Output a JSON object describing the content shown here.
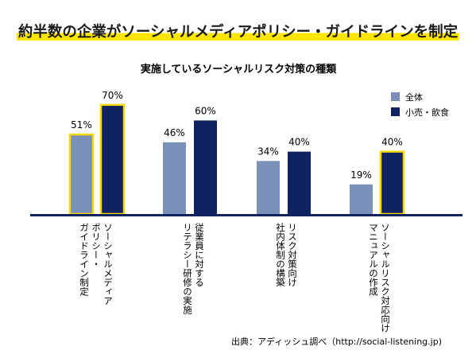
{
  "headline": "約半数の企業がソーシャルメディアポリシー・ガイドラインを制定",
  "source": "出典：アディッシュ調べ（http://social-listening.jp)",
  "colors": {
    "overall": "#7a8fb9",
    "retail": "#0e2360",
    "highlight": "#f5d800",
    "baseline": "#0e2360"
  },
  "chart_data": {
    "type": "bar",
    "title": "実施しているソーシャルリスク対策の種類",
    "categories": [
      [
        "ソーシャルメディア",
        "ポリシー・",
        "ガイドライン制定"
      ],
      [
        "従業員に対する",
        "リテラシー研修の実施"
      ],
      [
        "リスク対策向け",
        "社内体制の構築"
      ],
      [
        "ソーシャルリスク対応向け",
        "マニュアルの作成"
      ]
    ],
    "series": [
      {
        "name": "全体",
        "values": [
          51,
          46,
          34,
          19
        ],
        "labels": [
          "51%",
          "46%",
          "34%",
          "19%"
        ],
        "highlighted": [
          true,
          false,
          false,
          false
        ]
      },
      {
        "name": "小売・飲食",
        "values": [
          70,
          60,
          40,
          40
        ],
        "labels": [
          "70%",
          "60%",
          "40%",
          "40%"
        ],
        "highlighted": [
          true,
          false,
          false,
          true
        ]
      }
    ],
    "ylim": [
      0,
      100
    ],
    "legend": "top-right",
    "grid": false
  }
}
